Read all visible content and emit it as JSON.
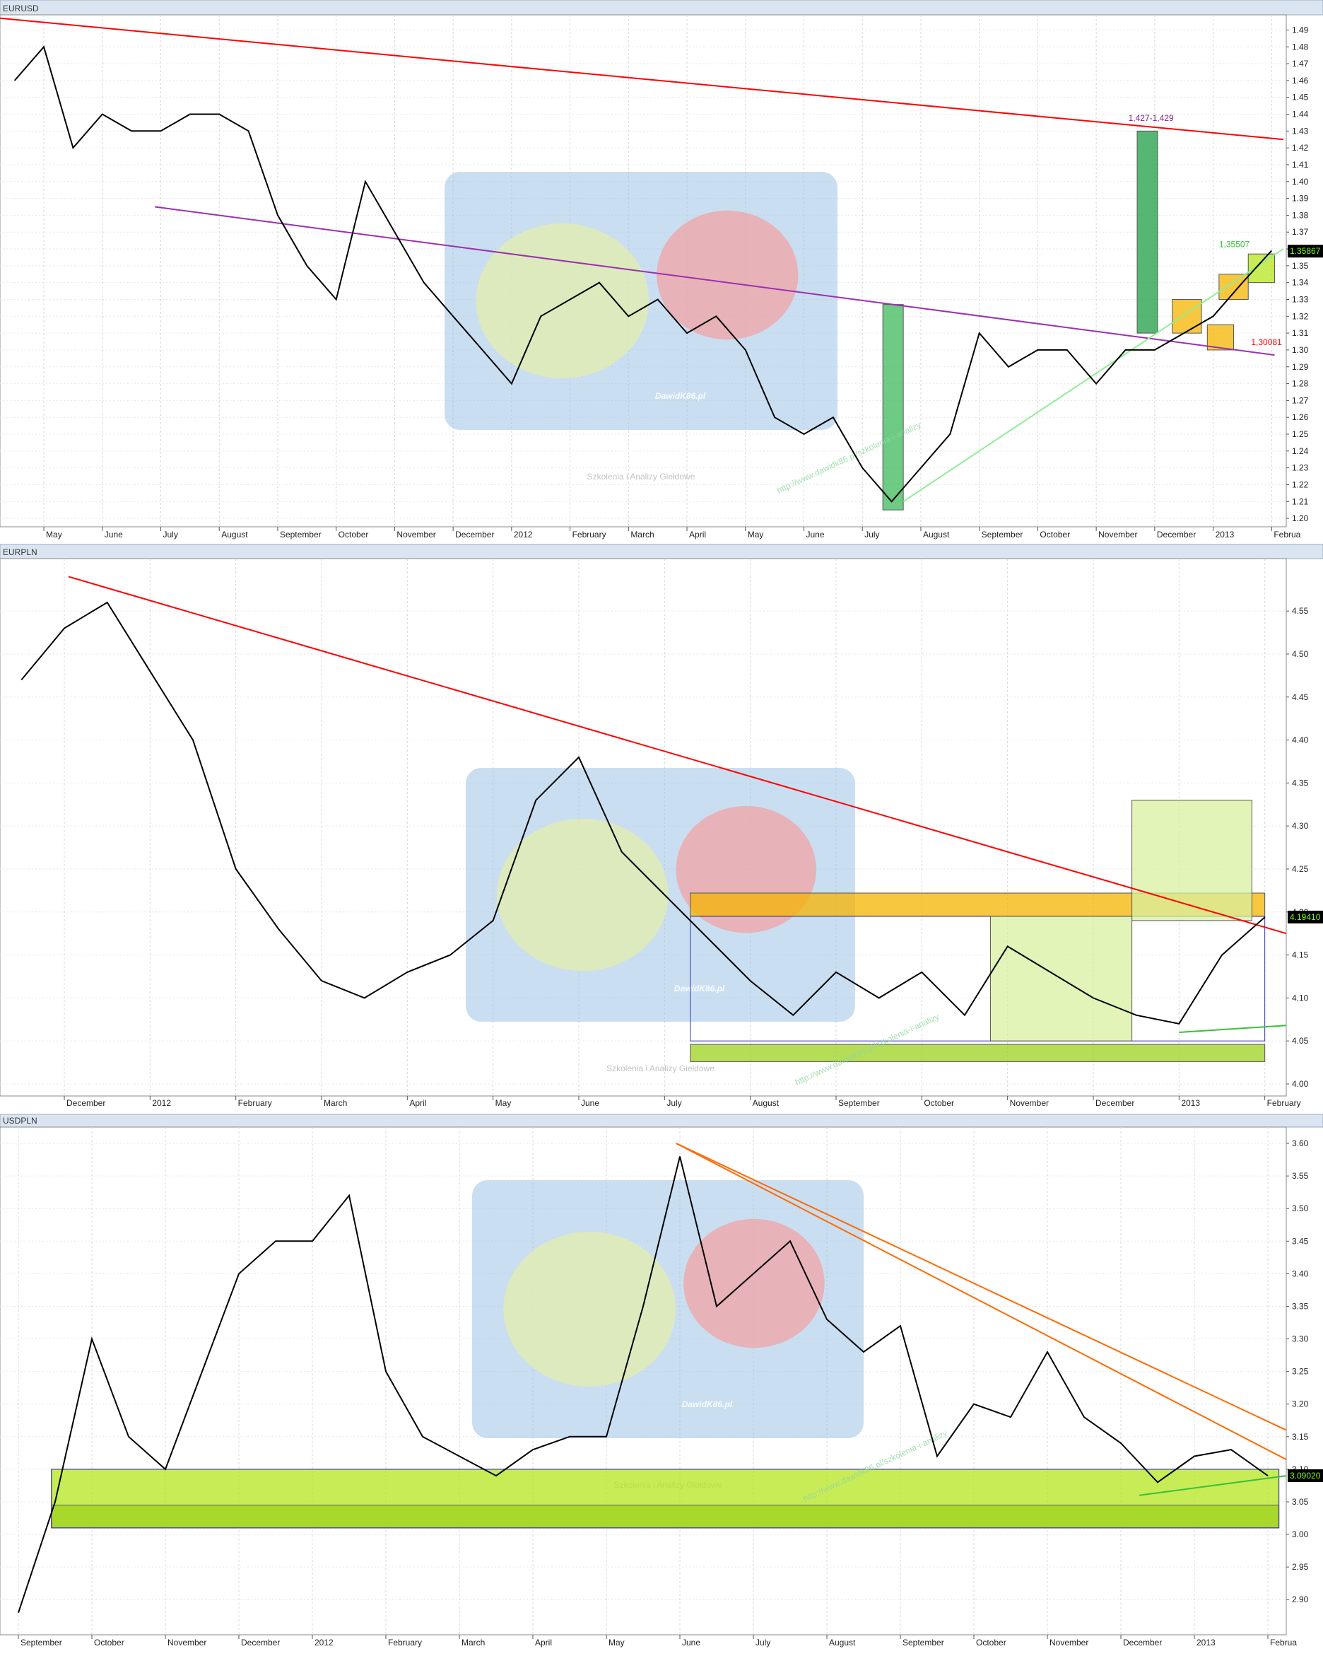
{
  "chart_data": [
    {
      "type": "line",
      "title": "EURUSD",
      "color": "#000000",
      "categories": [
        null,
        "May",
        null,
        "June",
        null,
        "July",
        null,
        "August",
        null,
        "September",
        null,
        "October",
        null,
        "November",
        null,
        "December",
        null,
        "2012",
        null,
        "February",
        null,
        "March",
        null,
        "April",
        null,
        "May",
        null,
        "June",
        null,
        "July",
        null,
        "August",
        null,
        "September",
        null,
        "October",
        null,
        "November",
        null,
        "December",
        null,
        "2013",
        null,
        "Februa"
      ],
      "values": [
        1.46,
        1.48,
        1.42,
        1.44,
        1.43,
        1.43,
        1.44,
        1.44,
        1.43,
        1.38,
        1.35,
        1.33,
        1.4,
        1.37,
        1.34,
        1.32,
        1.3,
        1.28,
        1.32,
        1.33,
        1.34,
        1.32,
        1.33,
        1.31,
        1.32,
        1.3,
        1.26,
        1.25,
        1.26,
        1.23,
        1.21,
        1.23,
        1.25,
        1.31,
        1.29,
        1.3,
        1.3,
        1.28,
        1.3,
        1.3,
        1.31,
        1.32,
        1.34,
        1.359
      ],
      "ylim": [
        1.195,
        1.499
      ],
      "yticks": [
        {
          "value": 1.2,
          "label": "1.20"
        },
        1.21,
        1.22,
        1.23,
        1.24,
        1.25,
        1.26,
        1.27,
        1.28,
        1.29,
        {
          "value": 1.3,
          "label": "1.30"
        },
        1.31,
        1.32,
        1.33,
        1.34,
        1.35,
        1.36,
        1.37,
        1.38,
        1.39,
        {
          "value": 1.4,
          "label": "1.40"
        },
        1.41,
        1.42,
        1.43,
        1.44,
        1.45,
        1.46,
        1.47,
        1.48,
        1.49
      ],
      "grid": true,
      "lines": [
        {
          "color": "#ff0000",
          "from": [
            -0.5,
            1.497
          ],
          "to": [
            43.4,
            1.425
          ]
        },
        {
          "color": "#9b30b0",
          "from": [
            4.8,
            1.385
          ],
          "to": [
            43.1,
            1.297
          ]
        },
        {
          "color": "#90ee90",
          "from": [
            30.4,
            1.21
          ],
          "to": [
            43.4,
            1.36
          ]
        }
      ],
      "zones": [
        {
          "color": "#3cb95a",
          "x": [
            29.7,
            30.4
          ],
          "y": [
            1.205,
            1.327
          ],
          "fill": true
        },
        {
          "color": "#1f9e45",
          "x": [
            38.4,
            39.1
          ],
          "y": [
            1.31,
            1.43
          ],
          "fill": true
        },
        {
          "color": "#f5b400",
          "x": [
            39.6,
            40.6
          ],
          "y": [
            1.31,
            1.33
          ],
          "fill": true
        },
        {
          "color": "#f5b400",
          "x": [
            40.8,
            41.7
          ],
          "y": [
            1.3,
            1.315
          ],
          "fill": true
        },
        {
          "color": "#f5b400",
          "x": [
            41.2,
            42.2
          ],
          "y": [
            1.33,
            1.345
          ],
          "fill": true
        },
        {
          "color": "#b5e61d",
          "x": [
            42.2,
            43.1
          ],
          "y": [
            1.34,
            1.357
          ],
          "fill": true
        }
      ],
      "annotations": [
        {
          "text": "1,427-1,429",
          "x": 38.1,
          "y": 1.436,
          "color": "#7a1f8a"
        },
        {
          "text": "1,35507",
          "x": 41.2,
          "y": 1.361,
          "color": "#3cbf3c"
        },
        {
          "text": "1,30081",
          "x": 42.3,
          "y": 1.303,
          "color": "#ff0000"
        }
      ],
      "last_label": {
        "text": "1.35867",
        "value": 1.35867
      }
    },
    {
      "type": "line",
      "title": "EURPLN",
      "color": "#000000",
      "categories": [
        null,
        "December",
        null,
        "2012",
        null,
        "February",
        null,
        "March",
        null,
        "April",
        null,
        "May",
        null,
        "June",
        null,
        "July",
        null,
        "August",
        null,
        "September",
        null,
        "October",
        null,
        "November",
        null,
        "December",
        null,
        "2013",
        null,
        "February"
      ],
      "values": [
        4.47,
        4.53,
        4.56,
        4.48,
        4.4,
        4.25,
        4.18,
        4.12,
        4.1,
        4.13,
        4.15,
        4.19,
        4.33,
        4.38,
        4.27,
        4.22,
        4.17,
        4.12,
        4.08,
        4.13,
        4.1,
        4.13,
        4.08,
        4.16,
        4.13,
        4.1,
        4.08,
        4.07,
        4.15,
        4.194
      ],
      "ylim": [
        3.986,
        4.611
      ],
      "yticks": [
        {
          "value": 4.0,
          "label": "4.00"
        },
        4.05,
        {
          "value": 4.1,
          "label": "4.10"
        },
        4.15,
        {
          "value": 4.2,
          "label": "4.20"
        },
        4.25,
        {
          "value": 4.3,
          "label": "4.30"
        },
        4.35,
        {
          "value": 4.4,
          "label": "4.40"
        },
        4.45,
        {
          "value": 4.5,
          "label": "4.50"
        },
        4.55
      ],
      "grid": true,
      "lines": [
        {
          "color": "#ff0000",
          "from": [
            1.1,
            4.59
          ],
          "to": [
            29.5,
            4.175
          ]
        },
        {
          "color": "#3cbf3c",
          "from": [
            27.0,
            4.06
          ],
          "to": [
            29.5,
            4.068
          ]
        }
      ],
      "zones": [
        {
          "color": "#f5b400",
          "x": [
            15.6,
            29.0
          ],
          "y": [
            4.195,
            4.222
          ],
          "fill": true
        },
        {
          "color": "#9ed21d",
          "x": [
            15.6,
            29.0
          ],
          "y": [
            4.026,
            4.046
          ],
          "fill": true
        },
        {
          "color": "#3333aa",
          "x": [
            15.6,
            29.0
          ],
          "y": [
            4.05,
            4.195
          ],
          "fill": false
        },
        {
          "color": "#d8f0a0",
          "x": [
            25.9,
            28.7
          ],
          "y": [
            4.19,
            4.33
          ],
          "fill": true
        },
        {
          "color": "#d8f0a0",
          "x": [
            22.6,
            25.9
          ],
          "y": [
            4.05,
            4.195
          ],
          "fill": true
        }
      ],
      "annotations": [],
      "last_label": {
        "text": "4.19410",
        "value": 4.1941
      }
    },
    {
      "type": "line",
      "title": "USDPLN",
      "color": "#000000",
      "categories": [
        "September",
        null,
        "October",
        null,
        "November",
        null,
        "December",
        null,
        "2012",
        null,
        "February",
        null,
        "March",
        null,
        "April",
        null,
        "May",
        null,
        "June",
        null,
        "July",
        null,
        "August",
        null,
        "September",
        null,
        "October",
        null,
        "November",
        null,
        "December",
        null,
        "2013",
        null,
        "Februa"
      ],
      "values": [
        2.88,
        3.05,
        3.3,
        3.15,
        3.1,
        3.25,
        3.4,
        3.45,
        3.45,
        3.52,
        3.25,
        3.15,
        3.12,
        3.09,
        3.13,
        3.15,
        3.15,
        3.35,
        3.58,
        3.35,
        3.4,
        3.45,
        3.33,
        3.28,
        3.32,
        3.12,
        3.2,
        3.18,
        3.28,
        3.18,
        3.14,
        3.08,
        3.12,
        3.13,
        3.09
      ],
      "ylim": [
        2.846,
        3.625
      ],
      "yticks": [
        {
          "value": 2.9,
          "label": "2.90"
        },
        2.95,
        {
          "value": 3.0,
          "label": "3.00"
        },
        3.05,
        {
          "value": 3.1,
          "label": "3.10"
        },
        3.15,
        {
          "value": 3.2,
          "label": "3.20"
        },
        3.25,
        {
          "value": 3.3,
          "label": "3.30"
        },
        3.35,
        {
          "value": 3.4,
          "label": "3.40"
        },
        3.45,
        {
          "value": 3.5,
          "label": "3.50"
        },
        3.55,
        {
          "value": 3.6,
          "label": "3.60"
        }
      ],
      "grid": true,
      "lines": [
        {
          "color": "#ff6a00",
          "from": [
            17.9,
            3.6
          ],
          "to": [
            34.5,
            3.16
          ]
        },
        {
          "color": "#ff6a00",
          "from": [
            17.9,
            3.6
          ],
          "to": [
            34.5,
            3.115
          ]
        },
        {
          "color": "#3cbf3c",
          "from": [
            30.5,
            3.06
          ],
          "to": [
            34.5,
            3.09
          ]
        }
      ],
      "zones": [
        {
          "color": "#b5e61d",
          "x": [
            0.9,
            34.3
          ],
          "y": [
            3.01,
            3.1
          ],
          "fill": true
        },
        {
          "color": "#9ed21d",
          "x": [
            0.9,
            34.3
          ],
          "y": [
            3.01,
            3.045
          ],
          "fill": true
        },
        {
          "color": "#3333aa",
          "x": [
            0.9,
            34.3
          ],
          "y": [
            3.01,
            3.1
          ],
          "fill": false
        }
      ],
      "annotations": [],
      "last_label": {
        "text": "3.09020",
        "value": 3.0902
      }
    }
  ],
  "watermark": {
    "brand": "DawidK86.pl",
    "tagline": "Szkolenia i Analizy Giełdowe",
    "url": "http://www.dawidk86.pl/szkolenia-i-analizy"
  }
}
